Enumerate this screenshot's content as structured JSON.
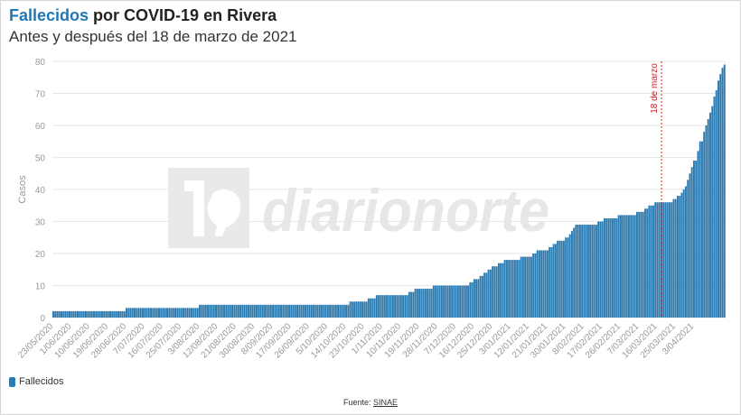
{
  "header": {
    "title_accent": "Fallecidos",
    "title_rest": "por COVID-19 en Rivera",
    "subtitle": "Antes y después del 18 de marzo de 2021"
  },
  "watermark": {
    "text": "diarionorte"
  },
  "legend": {
    "label": "Fallecidos"
  },
  "footer": {
    "source_prefix": "Fuente:",
    "source_link": "SINAE"
  },
  "colors": {
    "bar": "#2b7ab0",
    "bar_edge": "#1d5d8a",
    "annotation": "#cc1f1f",
    "grid": "#e6e6e6",
    "axis_text": "#999999"
  },
  "chart_data": {
    "type": "bar",
    "title": "Fallecidos por COVID-19 en Rivera",
    "subtitle": "Antes y después del 18 de marzo de 2021",
    "ylabel": "Casos",
    "xlabel": "",
    "ylim": [
      0,
      80
    ],
    "yticks": [
      0,
      10,
      20,
      30,
      40,
      50,
      60,
      70,
      80
    ],
    "grid": true,
    "legend_position": "bottom-left",
    "x_tick_labels": [
      "23/05/2020",
      "1/06/2020",
      "10/06/2020",
      "19/06/2020",
      "28/06/2020",
      "7/07/2020",
      "16/07/2020",
      "25/07/2020",
      "3/08/2020",
      "12/08/2020",
      "21/08/2020",
      "30/08/2020",
      "8/09/2020",
      "17/09/2020",
      "26/09/2020",
      "5/10/2020",
      "14/10/2020",
      "23/10/2020",
      "1/11/2020",
      "10/11/2020",
      "19/11/2020",
      "28/11/2020",
      "7/12/2020",
      "16/12/2020",
      "25/12/2020",
      "3/01/2021",
      "12/01/2021",
      "21/01/2021",
      "30/01/2021",
      "8/02/2021",
      "17/02/2021",
      "26/02/2021",
      "7/03/2021",
      "16/03/2021",
      "25/03/2021",
      "3/04/2021"
    ],
    "annotation": {
      "label": "18 de marzo",
      "date": "18/03/2021"
    },
    "series": [
      {
        "name": "Fallecidos",
        "start_date": "23/05/2020",
        "end_date": "11/04/2021",
        "values": [
          2,
          2,
          2,
          2,
          2,
          2,
          2,
          2,
          2,
          2,
          2,
          2,
          2,
          2,
          2,
          2,
          2,
          2,
          2,
          2,
          2,
          2,
          2,
          2,
          2,
          2,
          2,
          2,
          2,
          2,
          2,
          2,
          2,
          2,
          2,
          2,
          3,
          3,
          3,
          3,
          3,
          3,
          3,
          3,
          3,
          3,
          3,
          3,
          3,
          3,
          3,
          3,
          3,
          3,
          3,
          3,
          3,
          3,
          3,
          3,
          3,
          3,
          3,
          3,
          3,
          3,
          3,
          3,
          3,
          3,
          3,
          3,
          4,
          4,
          4,
          4,
          4,
          4,
          4,
          4,
          4,
          4,
          4,
          4,
          4,
          4,
          4,
          4,
          4,
          4,
          4,
          4,
          4,
          4,
          4,
          4,
          4,
          4,
          4,
          4,
          4,
          4,
          4,
          4,
          4,
          4,
          4,
          4,
          4,
          4,
          4,
          4,
          4,
          4,
          4,
          4,
          4,
          4,
          4,
          4,
          4,
          4,
          4,
          4,
          4,
          4,
          4,
          4,
          4,
          4,
          4,
          4,
          4,
          4,
          4,
          4,
          4,
          4,
          4,
          4,
          4,
          4,
          4,
          4,
          4,
          4,
          5,
          5,
          5,
          5,
          5,
          5,
          5,
          5,
          5,
          6,
          6,
          6,
          6,
          7,
          7,
          7,
          7,
          7,
          7,
          7,
          7,
          7,
          7,
          7,
          7,
          7,
          7,
          7,
          7,
          8,
          8,
          8,
          9,
          9,
          9,
          9,
          9,
          9,
          9,
          9,
          9,
          10,
          10,
          10,
          10,
          10,
          10,
          10,
          10,
          10,
          10,
          10,
          10,
          10,
          10,
          10,
          10,
          10,
          10,
          11,
          11,
          12,
          12,
          12,
          13,
          13,
          14,
          14,
          15,
          15,
          16,
          16,
          16,
          17,
          17,
          17,
          18,
          18,
          18,
          18,
          18,
          18,
          18,
          18,
          19,
          19,
          19,
          19,
          19,
          19,
          20,
          20,
          21,
          21,
          21,
          21,
          21,
          21,
          22,
          22,
          23,
          23,
          24,
          24,
          24,
          24,
          25,
          25,
          26,
          27,
          28,
          29,
          29,
          29,
          29,
          29,
          29,
          29,
          29,
          29,
          29,
          29,
          30,
          30,
          30,
          31,
          31,
          31,
          31,
          31,
          31,
          31,
          32,
          32,
          32,
          32,
          32,
          32,
          32,
          32,
          32,
          33,
          33,
          33,
          33,
          34,
          34,
          35,
          35,
          35,
          36,
          36,
          36,
          36,
          36,
          36,
          36,
          36,
          36,
          37,
          37,
          38,
          38,
          39,
          40,
          41,
          43,
          45,
          47,
          49,
          49,
          52,
          55,
          55,
          58,
          60,
          62,
          64,
          66,
          69,
          71,
          74,
          76,
          78,
          79
        ]
      }
    ]
  }
}
